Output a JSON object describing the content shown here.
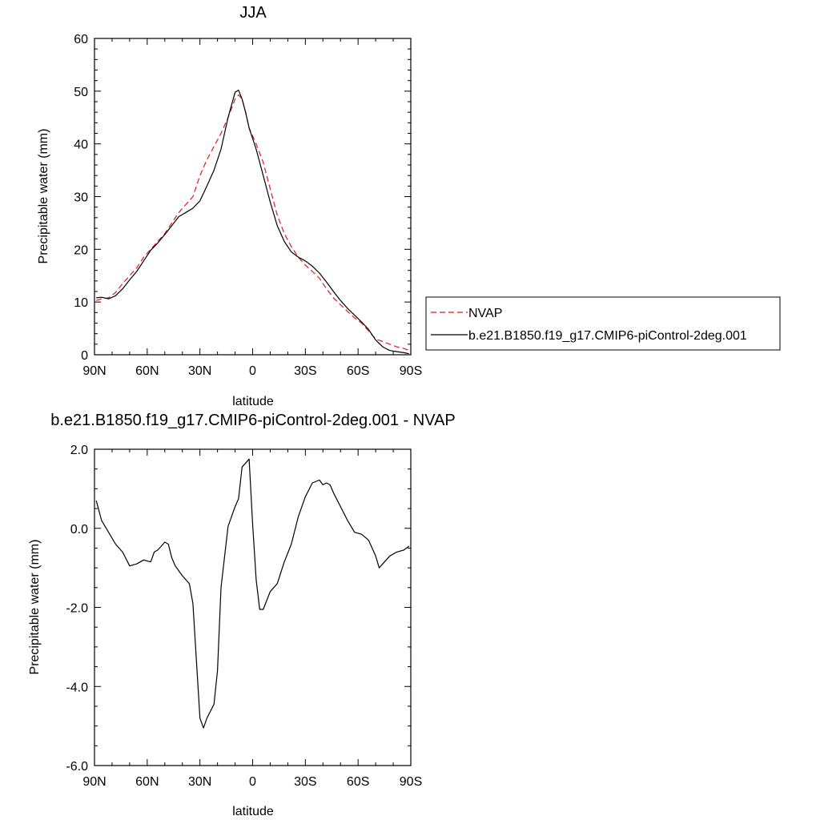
{
  "chart_data": [
    {
      "type": "line",
      "title": "JJA",
      "xlabel": "latitude",
      "ylabel": "Precipitable water (mm)",
      "xlim": [
        90,
        -90
      ],
      "ylim": [
        0,
        60
      ],
      "x_ticks": [
        90,
        60,
        30,
        0,
        -30,
        -60,
        -90
      ],
      "x_tick_labels": [
        "90N",
        "60N",
        "30N",
        "0",
        "30S",
        "60S",
        "90S"
      ],
      "y_ticks": [
        0,
        10,
        20,
        30,
        40,
        50,
        60
      ],
      "y_tick_labels": [
        "0",
        "10",
        "20",
        "30",
        "40",
        "50",
        "60"
      ],
      "grid": false,
      "legend_placement": "right",
      "series": [
        {
          "name": "NVAP",
          "color": "#e8161c",
          "dash": "dashed",
          "x": [
            89,
            86,
            82,
            78,
            74,
            70,
            66,
            62,
            58,
            54,
            50,
            46,
            42,
            38,
            34,
            30,
            26,
            22,
            18,
            14,
            10,
            8,
            6,
            4,
            2,
            0,
            -2,
            -6,
            -10,
            -14,
            -18,
            -22,
            -26,
            -30,
            -34,
            -38,
            -42,
            -46,
            -50,
            -54,
            -58,
            -62,
            -66,
            -70,
            -74,
            -78,
            -82,
            -86,
            -89
          ],
          "y": [
            10.3,
            10.6,
            10.8,
            11.8,
            13.5,
            15.0,
            16.5,
            18.5,
            20.0,
            21.5,
            23.0,
            25.0,
            27.0,
            28.5,
            30.0,
            34.0,
            37.0,
            39.5,
            42.0,
            45.0,
            48.5,
            49.3,
            48.5,
            46.0,
            43.0,
            41.5,
            40.0,
            36.5,
            31.5,
            26.5,
            23.0,
            20.5,
            18.5,
            17.0,
            15.8,
            14.5,
            12.5,
            10.8,
            9.5,
            8.2,
            7.0,
            6.0,
            4.5,
            3.0,
            2.5,
            2.0,
            1.5,
            1.2,
            0.8
          ]
        },
        {
          "name": "b.e21.B1850.f19_g17.CMIP6-piControl-2deg.001",
          "color": "#000000",
          "dash": "solid",
          "x": [
            89,
            86,
            82,
            78,
            74,
            70,
            66,
            62,
            58,
            54,
            50,
            46,
            42,
            38,
            34,
            30,
            26,
            22,
            18,
            14,
            10,
            8,
            6,
            4,
            2,
            0,
            -2,
            -6,
            -10,
            -14,
            -18,
            -22,
            -26,
            -30,
            -34,
            -38,
            -42,
            -46,
            -50,
            -54,
            -58,
            -62,
            -66,
            -70,
            -74,
            -78,
            -82,
            -86,
            -89
          ],
          "y": [
            10.8,
            10.9,
            10.6,
            11.2,
            12.5,
            14.2,
            15.8,
            17.8,
            19.8,
            21.2,
            22.8,
            24.5,
            26.2,
            27.0,
            27.8,
            29.2,
            32.0,
            35.0,
            39.0,
            45.0,
            49.8,
            50.2,
            48.5,
            46.0,
            43.0,
            41.0,
            39.0,
            34.0,
            29.0,
            24.5,
            21.5,
            19.5,
            18.5,
            17.8,
            16.8,
            15.5,
            13.8,
            12.0,
            10.3,
            8.8,
            7.5,
            6.2,
            4.8,
            2.8,
            1.5,
            0.8,
            0.6,
            0.4,
            0.2
          ]
        }
      ]
    },
    {
      "type": "line",
      "title": "b.e21.B1850.f19_g17.CMIP6-piControl-2deg.001 - NVAP",
      "xlabel": "latitude",
      "ylabel": "Precipitable water (mm)",
      "xlim": [
        90,
        -90
      ],
      "ylim": [
        -6,
        2
      ],
      "x_ticks": [
        90,
        60,
        30,
        0,
        -30,
        -60,
        -90
      ],
      "x_tick_labels": [
        "90N",
        "60N",
        "30N",
        "0",
        "30S",
        "60S",
        "90S"
      ],
      "y_ticks": [
        -6,
        -4,
        -2,
        0,
        2
      ],
      "y_tick_labels": [
        "-6.0",
        "-4.0",
        "-2.0",
        "0.0",
        "2.0"
      ],
      "grid": false,
      "series": [
        {
          "color": "#000000",
          "dash": "solid",
          "x": [
            89,
            86,
            82,
            78,
            74,
            70,
            66,
            62,
            58,
            56,
            54,
            52,
            50,
            48,
            46,
            44,
            40,
            36,
            34,
            30,
            28,
            26,
            22,
            20,
            18,
            14,
            10,
            8,
            6,
            4,
            2,
            0,
            -2,
            -4,
            -6,
            -10,
            -14,
            -18,
            -22,
            -26,
            -30,
            -34,
            -38,
            -40,
            -42,
            -44,
            -46,
            -50,
            -54,
            -58,
            -62,
            -66,
            -70,
            -72,
            -74,
            -78,
            -82,
            -86,
            -89
          ],
          "y": [
            0.7,
            0.2,
            -0.1,
            -0.4,
            -0.6,
            -0.95,
            -0.9,
            -0.8,
            -0.85,
            -0.6,
            -0.55,
            -0.45,
            -0.35,
            -0.4,
            -0.75,
            -0.95,
            -1.2,
            -1.4,
            -1.9,
            -4.8,
            -5.05,
            -4.8,
            -4.45,
            -3.6,
            -1.5,
            0.05,
            0.55,
            0.75,
            1.55,
            1.65,
            1.75,
            0.1,
            -1.3,
            -2.05,
            -2.05,
            -1.6,
            -1.4,
            -0.85,
            -0.4,
            0.3,
            0.8,
            1.15,
            1.22,
            1.1,
            1.15,
            1.1,
            0.9,
            0.55,
            0.2,
            -0.1,
            -0.15,
            -0.3,
            -0.7,
            -1.0,
            -0.9,
            -0.7,
            -0.6,
            -0.55,
            -0.45
          ]
        }
      ]
    }
  ]
}
